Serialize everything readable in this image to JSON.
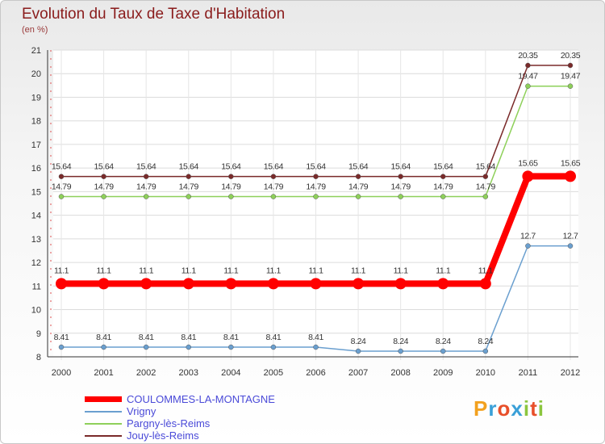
{
  "chart_data": {
    "type": "line",
    "title": "Evolution du Taux de Taxe d'Habitation",
    "subtitle": "(en %)",
    "categories": [
      "2000",
      "2001",
      "2002",
      "2003",
      "2004",
      "2005",
      "2006",
      "2007",
      "2008",
      "2009",
      "2010",
      "2011",
      "2012"
    ],
    "ylim": [
      8,
      21
    ],
    "yticks": [
      "8",
      "9",
      "10",
      "11",
      "12",
      "13",
      "14",
      "15",
      "16",
      "17",
      "18",
      "19",
      "20",
      "21"
    ],
    "series": [
      {
        "name": "COULOMMES-LA-MONTAGNE",
        "color": "#ff0000",
        "values": [
          11.1,
          11.1,
          11.1,
          11.1,
          11.1,
          11.1,
          11.1,
          11.1,
          11.1,
          11.1,
          11.1,
          15.65,
          15.65
        ],
        "labels": [
          "11.1",
          "11.1",
          "11.1",
          "11.1",
          "11.1",
          "11.1",
          "11.1",
          "11.1",
          "11.1",
          "11.1",
          "11.1",
          "15.65",
          "15.65"
        ]
      },
      {
        "name": "Vrigny",
        "color": "#6a9fcf",
        "values": [
          8.41,
          8.41,
          8.41,
          8.41,
          8.41,
          8.41,
          8.41,
          8.24,
          8.24,
          8.24,
          8.24,
          12.7,
          12.7
        ],
        "labels": [
          "8.41",
          "8.41",
          "8.41",
          "8.41",
          "8.41",
          "8.41",
          "8.41",
          "8.24",
          "8.24",
          "8.24",
          "8.24",
          "12.7",
          "12.7"
        ]
      },
      {
        "name": "Pargny-lès-Reims",
        "color": "#8ed05a",
        "values": [
          14.79,
          14.79,
          14.79,
          14.79,
          14.79,
          14.79,
          14.79,
          14.79,
          14.79,
          14.79,
          14.79,
          19.47,
          19.47
        ],
        "labels": [
          "14.79",
          "14.79",
          "14.79",
          "14.79",
          "14.79",
          "14.79",
          "14.79",
          "14.79",
          "14.79",
          "14.79",
          "14.79",
          "19.47",
          "19.47"
        ]
      },
      {
        "name": "Jouy-lès-Reims",
        "color": "#7a2a2a",
        "values": [
          15.64,
          15.64,
          15.64,
          15.64,
          15.64,
          15.64,
          15.64,
          15.64,
          15.64,
          15.64,
          15.64,
          20.35,
          20.35
        ],
        "labels": [
          "15.64",
          "15.64",
          "15.64",
          "15.64",
          "15.64",
          "15.64",
          "15.64",
          "15.64",
          "15.64",
          "15.64",
          "15.64",
          "20.35",
          "20.35"
        ]
      }
    ]
  },
  "logo": {
    "text": "Proxiti",
    "colors": [
      "#f2a11f",
      "#3aa0d8",
      "#e84f2a",
      "#3aa0d8",
      "#8cc63f",
      "#e84f2a",
      "#8cc63f"
    ]
  }
}
